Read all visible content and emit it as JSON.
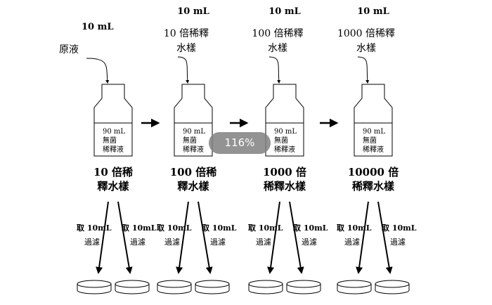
{
  "columns": [
    {
      "top_volume": "10 mL",
      "source_line1": "原液",
      "source_line2": "",
      "bottle_text": [
        "90 mL",
        "無菌",
        "稀釋液"
      ],
      "result_line1": "10 倍稀",
      "result_line2": "釋水樣",
      "take_label": "取 10mL",
      "filter_label": "過濾"
    },
    {
      "top_volume": "10 mL",
      "source_line1": "10 倍稀釋",
      "source_line2": "水樣",
      "bottle_text": [
        "90 mL",
        "無菌",
        "稀釋液"
      ],
      "result_line1": "100 倍稀",
      "result_line2": "釋水樣",
      "take_label": "取 10mL",
      "filter_label": "過濾"
    },
    {
      "top_volume": "10 mL",
      "source_line1": "100 倍稀釋",
      "source_line2": "水樣",
      "bottle_text": [
        "90 mL",
        "無菌",
        "稀釋液"
      ],
      "result_line1": "1000 倍",
      "result_line2": "稀釋水樣",
      "take_label": "取 10mL",
      "filter_label": "過濾"
    },
    {
      "top_volume": "10 mL",
      "source_line1": "1000 倍稀釋",
      "source_line2": "水樣",
      "bottle_text": [
        "90 mL",
        "無菌",
        "稀釋液"
      ],
      "result_line1": "10000 倍",
      "result_line2": "稀釋水樣",
      "take_label": "取 10mL",
      "filter_label": "過濾"
    }
  ],
  "zoom_indicator": "116%"
}
